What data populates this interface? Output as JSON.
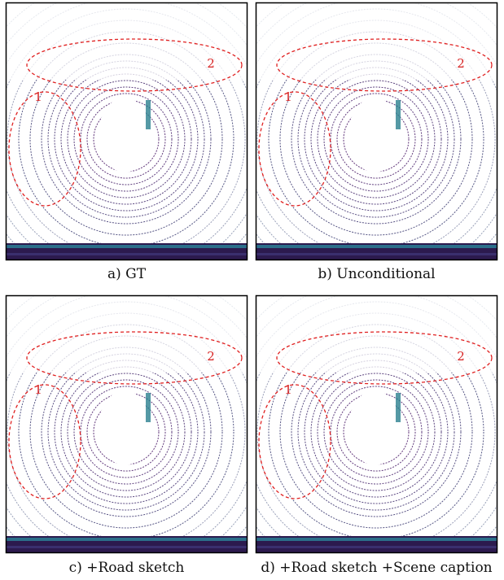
{
  "panels": [
    {
      "caption": "a) GT",
      "regions": [
        "1",
        "2"
      ]
    },
    {
      "caption": "b) Unconditional",
      "regions": [
        "1",
        "2"
      ]
    },
    {
      "caption": "c) +Road sketch",
      "regions": [
        "1",
        "2"
      ]
    },
    {
      "caption": "d) +Road sketch +Scene caption",
      "regions": [
        "1",
        "2"
      ]
    }
  ]
}
